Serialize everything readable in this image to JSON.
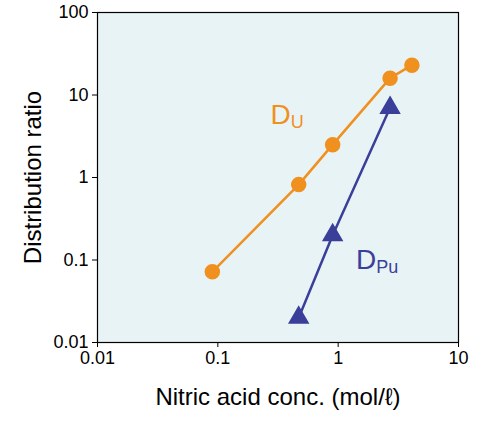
{
  "chart_data": {
    "type": "line",
    "x_label": "Nitric acid conc. (mol/ℓ)",
    "y_label": "Distribution ratio",
    "log": true,
    "grid": false,
    "xlim": [
      0.01,
      10
    ],
    "xticks": [
      0.01,
      0.1,
      1,
      10
    ],
    "ylim": [
      0.01,
      100
    ],
    "yticks": [
      0.01,
      0.1,
      1,
      10,
      100
    ],
    "series": [
      {
        "name": "DU",
        "color": "#f0901e",
        "marker": "circle",
        "x": [
          0.09,
          0.47,
          0.9,
          2.7,
          4.1
        ],
        "values": [
          0.072,
          0.82,
          2.5,
          16,
          23
        ]
      },
      {
        "name": "DPu",
        "color": "#3a3f99",
        "marker": "triangle",
        "x": [
          0.47,
          0.9,
          2.7
        ],
        "values": [
          0.02,
          0.2,
          7
        ]
      }
    ]
  }
}
